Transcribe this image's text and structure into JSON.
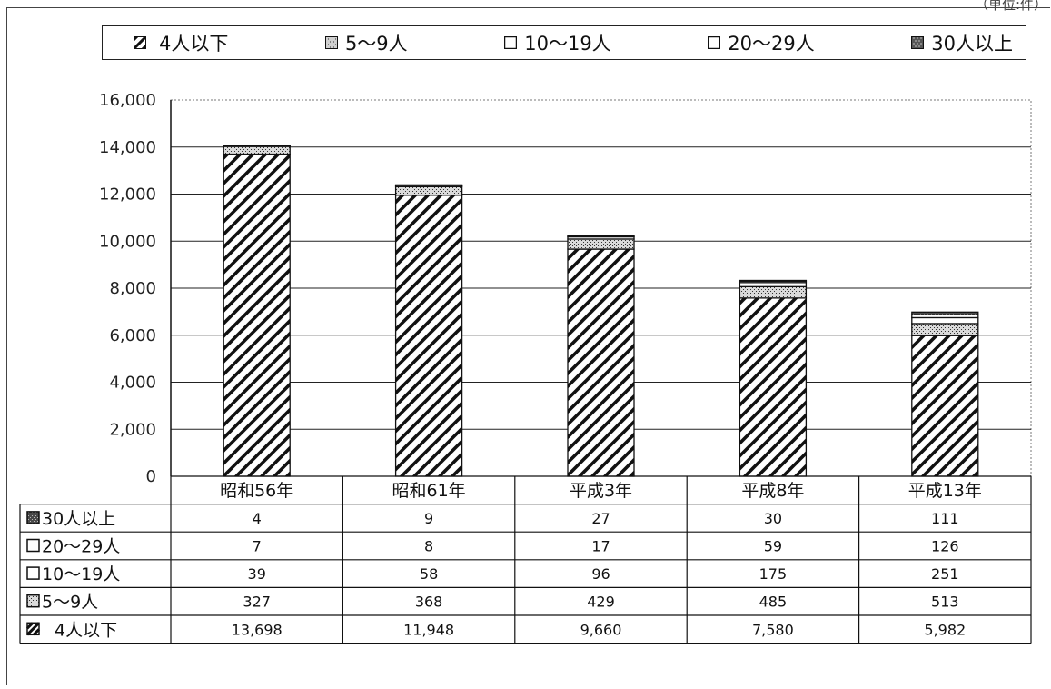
{
  "unit_note": "（単位:件）",
  "chart_data": {
    "type": "bar",
    "stacked": true,
    "categories": [
      "昭和56年",
      "昭和61年",
      "平成3年",
      "平成8年",
      "平成13年"
    ],
    "series": [
      {
        "name": "4人以下",
        "values": [
          13698,
          11948,
          9660,
          7580,
          5982
        ],
        "labels": [
          "13,698",
          "11,948",
          "9,660",
          "7,580",
          "5,982"
        ],
        "pattern": "diagonal-hatch"
      },
      {
        "name": "5～9人",
        "values": [
          327,
          368,
          429,
          485,
          513
        ],
        "labels": [
          "327",
          "368",
          "429",
          "485",
          "513"
        ],
        "pattern": "dotted"
      },
      {
        "name": "10～19人",
        "values": [
          39,
          58,
          96,
          175,
          251
        ],
        "labels": [
          "39",
          "58",
          "96",
          "175",
          "251"
        ],
        "pattern": "white"
      },
      {
        "name": "20～29人",
        "values": [
          7,
          8,
          17,
          59,
          126
        ],
        "labels": [
          "7",
          "8",
          "17",
          "59",
          "126"
        ],
        "pattern": "white"
      },
      {
        "name": "30人以上",
        "values": [
          4,
          9,
          27,
          30,
          111
        ],
        "labels": [
          "4",
          "9",
          "27",
          "30",
          "111"
        ],
        "pattern": "dark-dotted"
      }
    ],
    "ylim": [
      0,
      16000
    ],
    "yticks": [
      "0",
      "2,000",
      "4,000",
      "6,000",
      "8,000",
      "10,000",
      "12,000",
      "14,000",
      "16,000"
    ],
    "grid": true,
    "legend_position": "top",
    "legend_order": [
      "4人以下",
      "5～9人",
      "10～19人",
      "20～29人",
      "30人以上"
    ],
    "table_row_order": [
      "30人以上",
      "20～29人",
      "10～19人",
      "5～9人",
      "4人以下"
    ]
  }
}
